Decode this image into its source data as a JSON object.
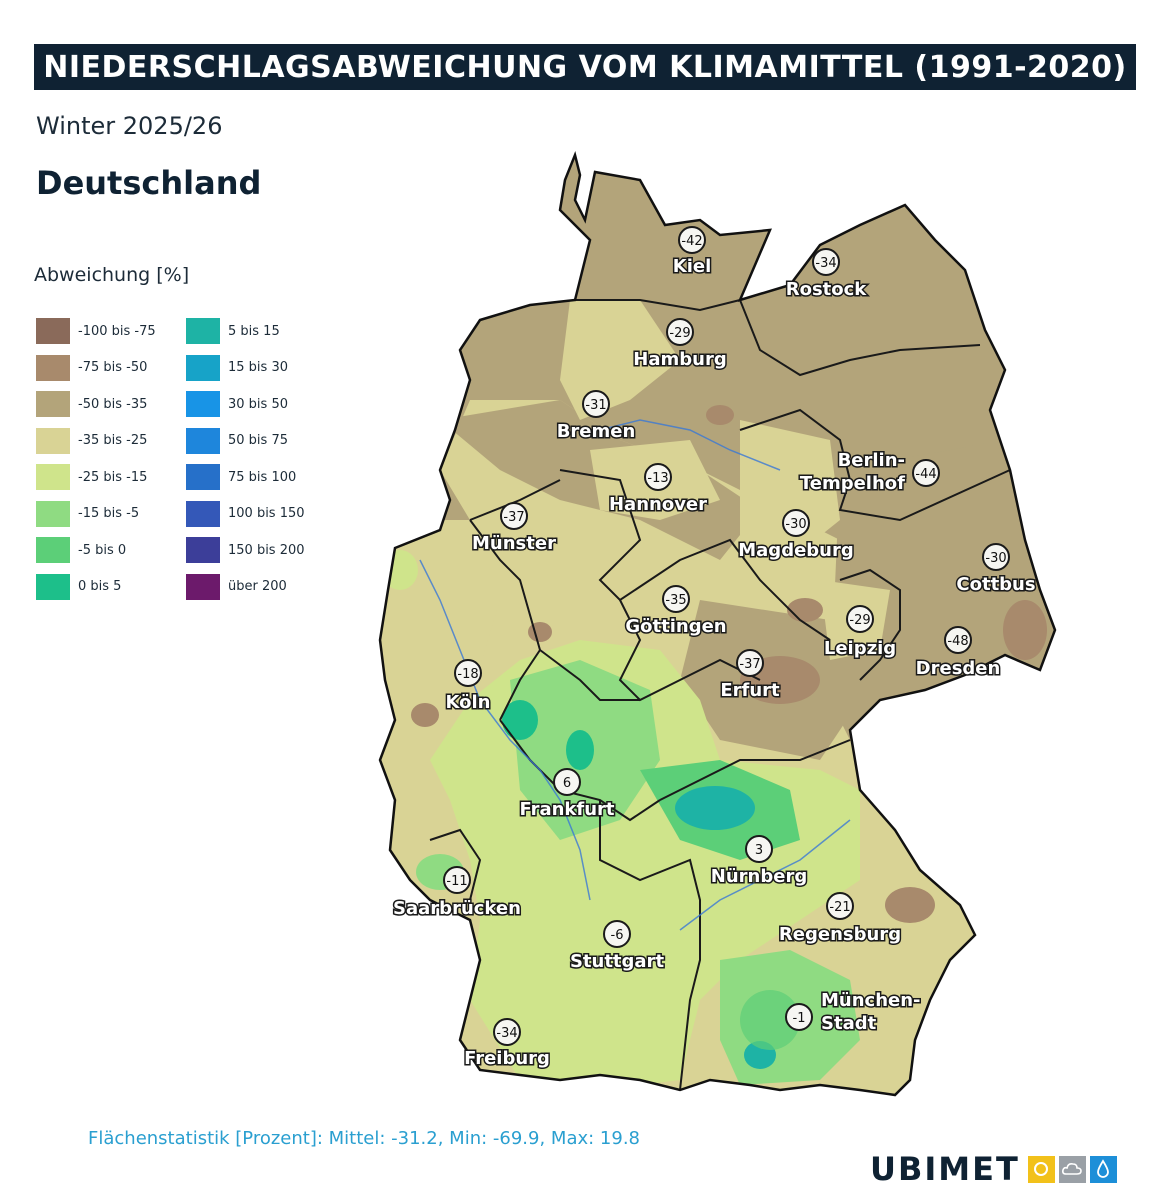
{
  "title": "NIEDERSCHLAGSABWEICHUNG VOM KLIMAMITTEL (1991-2020)",
  "subtitle": "Winter 2025/26",
  "region": "Deutschland",
  "legend": {
    "title": "Abweichung [%]",
    "items": [
      {
        "label": "-100 bis -75",
        "color": "#8a6a5a"
      },
      {
        "label": "-75 bis -50",
        "color": "#a88a6c"
      },
      {
        "label": "-50 bis -35",
        "color": "#b3a47a"
      },
      {
        "label": "-35 bis -25",
        "color": "#d9d395"
      },
      {
        "label": "-25 bis -15",
        "color": "#cfe48b"
      },
      {
        "label": "-15 bis -5",
        "color": "#8fdb82"
      },
      {
        "label": "-5 bis 0",
        "color": "#5ccf78"
      },
      {
        "label": "0 bis 5",
        "color": "#1dbf8a"
      },
      {
        "label": "5 bis 15",
        "color": "#1eb3a5"
      },
      {
        "label": "15 bis 30",
        "color": "#17a3c8"
      },
      {
        "label": "30 bis 50",
        "color": "#1894e6"
      },
      {
        "label": "50 bis 75",
        "color": "#1e86dc"
      },
      {
        "label": "75 bis 100",
        "color": "#2670c9"
      },
      {
        "label": "100 bis 150",
        "color": "#3458b8"
      },
      {
        "label": "150 bis 200",
        "color": "#3c3e99"
      },
      {
        "label": "über 200",
        "color": "#6c1a6b"
      }
    ]
  },
  "cities": [
    {
      "name": "Kiel",
      "value": "-42"
    },
    {
      "name": "Rostock",
      "value": "-34"
    },
    {
      "name": "Hamburg",
      "value": "-29"
    },
    {
      "name": "Bremen",
      "value": "-31"
    },
    {
      "name": "Berlin-\nTempelhof",
      "line1": "Berlin-",
      "line2": "Tempelhof",
      "value": "-44"
    },
    {
      "name": "Hannover",
      "value": "-13"
    },
    {
      "name": "Münster",
      "value": "-37"
    },
    {
      "name": "Magdeburg",
      "value": "-30"
    },
    {
      "name": "Cottbus",
      "value": "-30"
    },
    {
      "name": "Göttingen",
      "value": "-35"
    },
    {
      "name": "Leipzig",
      "value": "-29"
    },
    {
      "name": "Dresden",
      "value": "-48"
    },
    {
      "name": "Köln",
      "value": "-18"
    },
    {
      "name": "Erfurt",
      "value": "-37"
    },
    {
      "name": "Frankfurt",
      "value": "6"
    },
    {
      "name": "Nürnberg",
      "value": "3"
    },
    {
      "name": "Saarbrücken",
      "value": "-11"
    },
    {
      "name": "Regensburg",
      "value": "-21"
    },
    {
      "name": "Stuttgart",
      "value": "-6"
    },
    {
      "name": "München-\nStadt",
      "line1": "München-",
      "line2": "Stadt",
      "value": "-1"
    },
    {
      "name": "Freiburg",
      "value": "-34"
    }
  ],
  "stats": "Flächenstatistik [Prozent]: Mittel: -31.2, Min: -69.9, Max: 19.8",
  "logo": {
    "text": "UBIMET",
    "icons": [
      "sun-icon",
      "cloud-icon",
      "raindrop-icon"
    ]
  }
}
